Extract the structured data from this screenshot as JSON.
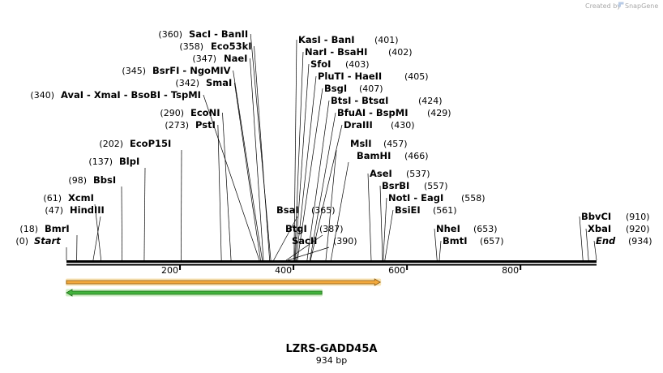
{
  "credit": "Created by",
  "brand": "SnapGene",
  "map_title": "LZRS-GADD45A",
  "map_subtitle": "934 bp",
  "sequence_length": 934,
  "ruler_ticks": [
    {
      "value": 200,
      "label": "200"
    },
    {
      "value": 400,
      "label": "400"
    },
    {
      "value": 600,
      "label": "600"
    },
    {
      "value": 800,
      "label": "800"
    }
  ],
  "features": [
    {
      "name": "orange-feature-arrow",
      "start": 0,
      "end": 553,
      "direction": "forward",
      "fill": "#f3a93c",
      "edge": "#8a5a12",
      "halo": "#f8e3b4"
    },
    {
      "name": "green-feature-arrow",
      "start": 0,
      "end": 450,
      "direction": "reverse",
      "fill": "#42b33c",
      "edge": "#1f6e1a",
      "halo": "#cdeec2"
    }
  ],
  "labels": [
    {
      "names": [
        "SacI",
        "BanII"
      ],
      "pos": "(360)",
      "site": 360
    },
    {
      "names": [
        "Eco53kI"
      ],
      "pos": "(358)",
      "site": 358
    },
    {
      "names": [
        "NaeI"
      ],
      "pos": "(347)",
      "site": 347
    },
    {
      "names": [
        "BsrFI",
        "NgoMIV"
      ],
      "pos": "(345)",
      "site": 345
    },
    {
      "names": [
        "SmaI"
      ],
      "pos": "(342)",
      "site": 342
    },
    {
      "names": [
        "AvaI",
        "XmaI",
        "BsoBI",
        "TspMI"
      ],
      "pos": "(340)",
      "site": 340
    },
    {
      "names": [
        "EcoNI"
      ],
      "pos": "(290)",
      "site": 290
    },
    {
      "names": [
        "PstI"
      ],
      "pos": "(273)",
      "site": 273
    },
    {
      "names": [
        "EcoP15I"
      ],
      "pos": "(202)",
      "site": 202
    },
    {
      "names": [
        "BlpI"
      ],
      "pos": "(137)",
      "site": 137
    },
    {
      "names": [
        "BbsI"
      ],
      "pos": "(98)",
      "site": 98
    },
    {
      "names": [
        "XcmI"
      ],
      "pos": "(61)",
      "site": 61
    },
    {
      "names": [
        "HindIII"
      ],
      "pos": "(47)",
      "site": 47
    },
    {
      "names": [
        "BmrI"
      ],
      "pos": "(18)",
      "site": 18
    },
    {
      "names": [
        "Start"
      ],
      "pos": "(0)",
      "site": 0,
      "italic": true
    },
    {
      "names": [
        "KasI",
        "BanI"
      ],
      "pos": "(401)",
      "site": 401
    },
    {
      "names": [
        "NarI",
        "BsaHI"
      ],
      "pos": "(402)",
      "site": 402
    },
    {
      "names": [
        "SfoI"
      ],
      "pos": "(403)",
      "site": 403
    },
    {
      "names": [
        "PluTI",
        "HaeII"
      ],
      "pos": "(405)",
      "site": 405
    },
    {
      "names": [
        "BsgI"
      ],
      "pos": "(407)",
      "site": 407
    },
    {
      "names": [
        "BtsI",
        "BtsαI"
      ],
      "pos": "(424)",
      "site": 424
    },
    {
      "names": [
        "BfuAI",
        "BspMI"
      ],
      "pos": "(429)",
      "site": 429
    },
    {
      "names": [
        "DraIII"
      ],
      "pos": "(430)",
      "site": 430
    },
    {
      "names": [
        "MslI"
      ],
      "pos": "(457)",
      "site": 457
    },
    {
      "names": [
        "BamHI"
      ],
      "pos": "(466)",
      "site": 466
    },
    {
      "names": [
        "BsaI"
      ],
      "pos": "(365)",
      "site": 365
    },
    {
      "names": [
        "BtgI"
      ],
      "pos": "(387)",
      "site": 387
    },
    {
      "names": [
        "SacII"
      ],
      "pos": "(390)",
      "site": 390
    },
    {
      "names": [
        "AseI"
      ],
      "pos": "(537)",
      "site": 537
    },
    {
      "names": [
        "BsrBI"
      ],
      "pos": "(557)",
      "site": 557
    },
    {
      "names": [
        "NotI",
        "EagI"
      ],
      "pos": "(558)",
      "site": 558
    },
    {
      "names": [
        "BsiEI"
      ],
      "pos": "(561)",
      "site": 561
    },
    {
      "names": [
        "NheI"
      ],
      "pos": "(653)",
      "site": 653
    },
    {
      "names": [
        "BmtI"
      ],
      "pos": "(657)",
      "site": 657
    },
    {
      "names": [
        "BbvCI"
      ],
      "pos": "(910)",
      "site": 910
    },
    {
      "names": [
        "XbaI"
      ],
      "pos": "(920)",
      "site": 920
    },
    {
      "names": [
        "End"
      ],
      "pos": "(934)",
      "site": 934,
      "italic": true
    }
  ]
}
